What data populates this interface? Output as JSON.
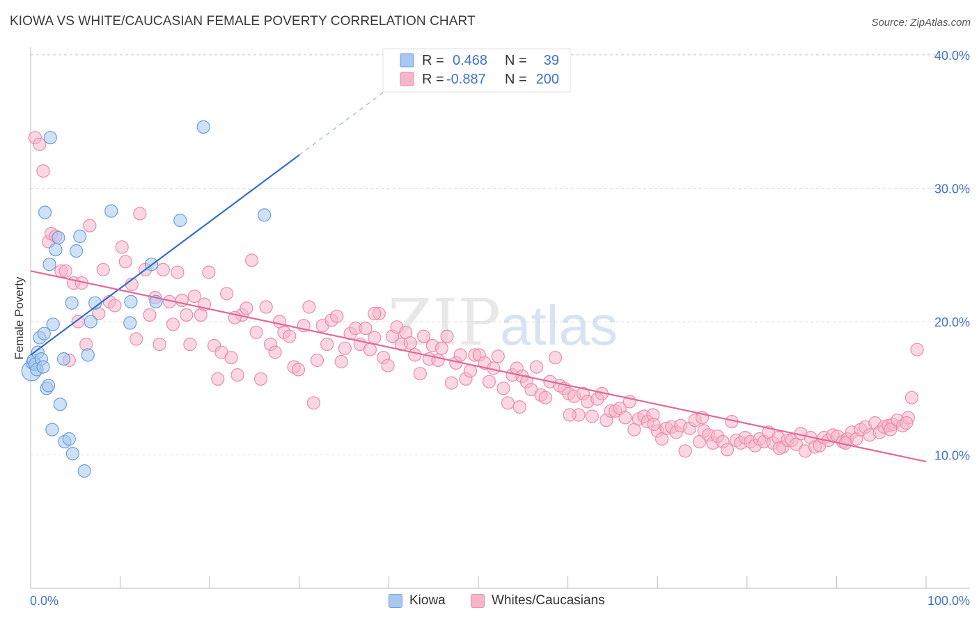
{
  "header": {
    "title": "KIOWA VS WHITE/CAUCASIAN FEMALE POVERTY CORRELATION CHART",
    "source": "Source: ZipAtlas.com"
  },
  "watermark": {
    "zip": "ZIP",
    "atlas": "atlas"
  },
  "legend": {
    "rows": [
      {
        "r_label": "R =",
        "r_value": "0.468",
        "n_label": "N =",
        "n_value": "39"
      },
      {
        "r_label": "R =",
        "r_value": "-0.887",
        "n_label": "N =",
        "n_value": "200"
      }
    ]
  },
  "bottom_legend": {
    "kiowa": "Kiowa",
    "whites": "Whites/Caucasians"
  },
  "colors": {
    "kiowa_fill": "#a8c8f0",
    "kiowa_stroke": "#6a9de0",
    "kiowa_line": "#2f6fd0",
    "whites_fill": "#f6b6ca",
    "whites_stroke": "#ec8bab",
    "whites_line": "#e2689a",
    "tick_text": "#3f74c9"
  },
  "chart_data": {
    "type": "scatter",
    "title": "KIOWA VS WHITE/CAUCASIAN FEMALE POVERTY CORRELATION CHART",
    "ylabel": "Female Poverty",
    "xlim": [
      0,
      100
    ],
    "ylim": [
      0,
      42
    ],
    "y_ticks": [
      {
        "value": 10,
        "label": "10.0%"
      },
      {
        "value": 20,
        "label": "20.0%"
      },
      {
        "value": 30,
        "label": "30.0%"
      },
      {
        "value": 40,
        "label": "40.0%"
      }
    ],
    "x_tick_labels": {
      "min": "0.0%",
      "max": "100.0%"
    },
    "grid": true,
    "legend_position": "top-center",
    "series": [
      {
        "name": "Kiowa",
        "r": 0.468,
        "n": 39,
        "trend": {
          "x0": 0,
          "y0": 17.5,
          "x1": 30,
          "y1": 32.5,
          "dashed_to_x": 41,
          "dashed_to_y": 38.0
        },
        "points": [
          [
            0.1,
            16.3
          ],
          [
            0.2,
            16.9
          ],
          [
            0.3,
            17.1
          ],
          [
            0.5,
            16.8
          ],
          [
            0.7,
            16.4
          ],
          [
            0.8,
            17.7
          ],
          [
            1.0,
            18.8
          ],
          [
            1.2,
            17.2
          ],
          [
            1.4,
            16.6
          ],
          [
            1.5,
            19.1
          ],
          [
            1.6,
            28.2
          ],
          [
            1.8,
            15.0
          ],
          [
            2.0,
            15.2
          ],
          [
            2.2,
            33.8
          ],
          [
            2.1,
            24.3
          ],
          [
            2.5,
            19.8
          ],
          [
            2.4,
            11.9
          ],
          [
            2.8,
            25.4
          ],
          [
            3.1,
            26.3
          ],
          [
            3.3,
            13.8
          ],
          [
            3.7,
            17.2
          ],
          [
            3.8,
            11.0
          ],
          [
            4.3,
            11.2
          ],
          [
            4.6,
            21.4
          ],
          [
            4.7,
            10.1
          ],
          [
            5.1,
            25.3
          ],
          [
            5.5,
            26.4
          ],
          [
            6.0,
            8.8
          ],
          [
            6.4,
            17.5
          ],
          [
            6.7,
            20.0
          ],
          [
            7.2,
            21.4
          ],
          [
            9.0,
            28.3
          ],
          [
            11.2,
            21.5
          ],
          [
            11.1,
            19.9
          ],
          [
            13.5,
            24.3
          ],
          [
            14.0,
            21.5
          ],
          [
            16.7,
            27.6
          ],
          [
            19.3,
            34.6
          ],
          [
            26.1,
            28.0
          ]
        ]
      },
      {
        "name": "Whites/Caucasians",
        "r": -0.887,
        "n": 200,
        "trend": {
          "x0": 0,
          "y0": 23.8,
          "x1": 100,
          "y1": 9.5
        },
        "points": [
          [
            0.5,
            33.8
          ],
          [
            1.0,
            33.3
          ],
          [
            1.4,
            31.3
          ],
          [
            2.0,
            26.0
          ],
          [
            2.3,
            26.6
          ],
          [
            2.8,
            26.4
          ],
          [
            3.4,
            23.8
          ],
          [
            3.9,
            23.8
          ],
          [
            4.3,
            17.1
          ],
          [
            4.8,
            22.9
          ],
          [
            5.3,
            20.0
          ],
          [
            5.7,
            22.9
          ],
          [
            6.2,
            18.3
          ],
          [
            6.6,
            27.2
          ],
          [
            7.6,
            20.6
          ],
          [
            8.1,
            23.9
          ],
          [
            8.8,
            21.5
          ],
          [
            9.4,
            21.2
          ],
          [
            10.2,
            25.6
          ],
          [
            10.6,
            24.5
          ],
          [
            11.3,
            22.8
          ],
          [
            11.8,
            18.7
          ],
          [
            12.2,
            28.1
          ],
          [
            12.8,
            23.9
          ],
          [
            13.3,
            20.5
          ],
          [
            13.9,
            21.8
          ],
          [
            14.4,
            18.3
          ],
          [
            14.8,
            23.9
          ],
          [
            15.5,
            21.5
          ],
          [
            15.9,
            19.8
          ],
          [
            16.4,
            23.7
          ],
          [
            16.9,
            21.6
          ],
          [
            17.4,
            20.5
          ],
          [
            17.8,
            18.3
          ],
          [
            18.3,
            21.9
          ],
          [
            19.0,
            20.5
          ],
          [
            19.4,
            21.3
          ],
          [
            19.9,
            23.7
          ],
          [
            20.5,
            18.2
          ],
          [
            20.9,
            15.7
          ],
          [
            21.3,
            17.7
          ],
          [
            21.9,
            22.1
          ],
          [
            22.4,
            17.3
          ],
          [
            23.1,
            16.0
          ],
          [
            23.6,
            20.5
          ],
          [
            24.1,
            21.0
          ],
          [
            24.7,
            24.6
          ],
          [
            25.2,
            19.2
          ],
          [
            25.7,
            15.7
          ],
          [
            26.3,
            21.1
          ],
          [
            26.8,
            18.3
          ],
          [
            27.3,
            17.7
          ],
          [
            27.8,
            20.0
          ],
          [
            28.3,
            19.2
          ],
          [
            28.9,
            18.9
          ],
          [
            29.4,
            16.6
          ],
          [
            29.9,
            16.4
          ],
          [
            30.5,
            19.7
          ],
          [
            31.1,
            21.1
          ],
          [
            31.6,
            13.9
          ],
          [
            32.0,
            17.1
          ],
          [
            32.6,
            19.7
          ],
          [
            33.1,
            18.3
          ],
          [
            33.6,
            20.1
          ],
          [
            34.2,
            20.4
          ],
          [
            34.7,
            17.0
          ],
          [
            35.1,
            18.0
          ],
          [
            35.7,
            19.1
          ],
          [
            36.3,
            19.5
          ],
          [
            36.8,
            18.3
          ],
          [
            37.4,
            19.5
          ],
          [
            37.9,
            17.9
          ],
          [
            38.4,
            18.8
          ],
          [
            38.9,
            20.6
          ],
          [
            39.4,
            17.3
          ],
          [
            39.9,
            16.7
          ],
          [
            40.4,
            18.9
          ],
          [
            40.9,
            19.6
          ],
          [
            41.4,
            18.3
          ],
          [
            41.9,
            19.2
          ],
          [
            42.4,
            18.4
          ],
          [
            42.9,
            17.5
          ],
          [
            43.5,
            16.1
          ],
          [
            43.9,
            18.9
          ],
          [
            44.5,
            17.2
          ],
          [
            44.9,
            18.2
          ],
          [
            45.5,
            17.1
          ],
          [
            45.9,
            18.0
          ],
          [
            46.5,
            18.9
          ],
          [
            47.0,
            15.4
          ],
          [
            47.5,
            16.9
          ],
          [
            48.0,
            17.5
          ],
          [
            48.6,
            15.7
          ],
          [
            49.1,
            16.3
          ],
          [
            49.6,
            17.5
          ],
          [
            50.1,
            17.5
          ],
          [
            50.7,
            16.9
          ],
          [
            51.2,
            15.5
          ],
          [
            51.7,
            16.5
          ],
          [
            52.2,
            17.4
          ],
          [
            52.8,
            15.0
          ],
          [
            53.3,
            13.9
          ],
          [
            53.8,
            16.0
          ],
          [
            54.3,
            16.5
          ],
          [
            54.9,
            15.9
          ],
          [
            55.4,
            15.5
          ],
          [
            55.9,
            14.9
          ],
          [
            56.5,
            16.6
          ],
          [
            57.0,
            14.5
          ],
          [
            57.5,
            14.3
          ],
          [
            58.0,
            15.5
          ],
          [
            58.6,
            17.3
          ],
          [
            59.1,
            15.2
          ],
          [
            59.6,
            15.0
          ],
          [
            60.1,
            14.6
          ],
          [
            60.7,
            14.4
          ],
          [
            61.2,
            13.0
          ],
          [
            61.7,
            14.6
          ],
          [
            62.2,
            14.0
          ],
          [
            62.7,
            12.9
          ],
          [
            63.3,
            14.2
          ],
          [
            63.8,
            14.6
          ],
          [
            64.3,
            12.6
          ],
          [
            64.8,
            13.3
          ],
          [
            65.3,
            13.3
          ],
          [
            65.8,
            13.5
          ],
          [
            66.4,
            12.8
          ],
          [
            66.9,
            14.0
          ],
          [
            67.4,
            11.9
          ],
          [
            67.9,
            12.7
          ],
          [
            68.5,
            12.9
          ],
          [
            68.9,
            12.5
          ],
          [
            69.5,
            13.0
          ],
          [
            70.0,
            11.8
          ],
          [
            70.5,
            11.2
          ],
          [
            71.0,
            12.0
          ],
          [
            71.6,
            12.1
          ],
          [
            72.1,
            11.7
          ],
          [
            72.6,
            12.2
          ],
          [
            73.1,
            10.3
          ],
          [
            73.6,
            12.0
          ],
          [
            74.2,
            12.6
          ],
          [
            74.7,
            11.0
          ],
          [
            75.2,
            11.8
          ],
          [
            75.7,
            11.5
          ],
          [
            76.2,
            10.9
          ],
          [
            76.7,
            11.4
          ],
          [
            77.3,
            11.0
          ],
          [
            77.8,
            10.4
          ],
          [
            78.3,
            12.5
          ],
          [
            78.8,
            11.1
          ],
          [
            79.3,
            10.9
          ],
          [
            79.8,
            11.3
          ],
          [
            80.4,
            11.0
          ],
          [
            80.9,
            10.7
          ],
          [
            81.4,
            11.2
          ],
          [
            81.9,
            11.0
          ],
          [
            82.4,
            11.7
          ],
          [
            82.9,
            10.9
          ],
          [
            83.5,
            11.3
          ],
          [
            84.0,
            10.6
          ],
          [
            84.5,
            11.1
          ],
          [
            85.0,
            11.1
          ],
          [
            85.5,
            10.8
          ],
          [
            86.0,
            11.6
          ],
          [
            86.5,
            10.3
          ],
          [
            87.1,
            11.3
          ],
          [
            87.6,
            10.6
          ],
          [
            88.1,
            10.7
          ],
          [
            88.6,
            11.3
          ],
          [
            89.1,
            11.1
          ],
          [
            89.6,
            11.5
          ],
          [
            90.1,
            11.4
          ],
          [
            90.7,
            11.0
          ],
          [
            91.2,
            11.2
          ],
          [
            91.7,
            11.7
          ],
          [
            92.2,
            11.2
          ],
          [
            92.7,
            11.9
          ],
          [
            93.2,
            12.1
          ],
          [
            93.7,
            11.5
          ],
          [
            94.3,
            12.4
          ],
          [
            94.8,
            11.7
          ],
          [
            95.3,
            12.1
          ],
          [
            95.8,
            12.2
          ],
          [
            96.3,
            12.3
          ],
          [
            96.8,
            12.6
          ],
          [
            97.4,
            12.2
          ],
          [
            98.0,
            12.8
          ],
          [
            98.4,
            14.3
          ],
          [
            99.0,
            17.9
          ],
          [
            22.8,
            20.3
          ],
          [
            38.4,
            20.6
          ],
          [
            54.6,
            13.6
          ],
          [
            60.2,
            13.0
          ],
          [
            69.6,
            12.3
          ],
          [
            75.0,
            12.8
          ],
          [
            83.6,
            10.5
          ],
          [
            91.0,
            10.9
          ],
          [
            96.0,
            11.9
          ],
          [
            97.8,
            12.4
          ]
        ]
      }
    ]
  }
}
